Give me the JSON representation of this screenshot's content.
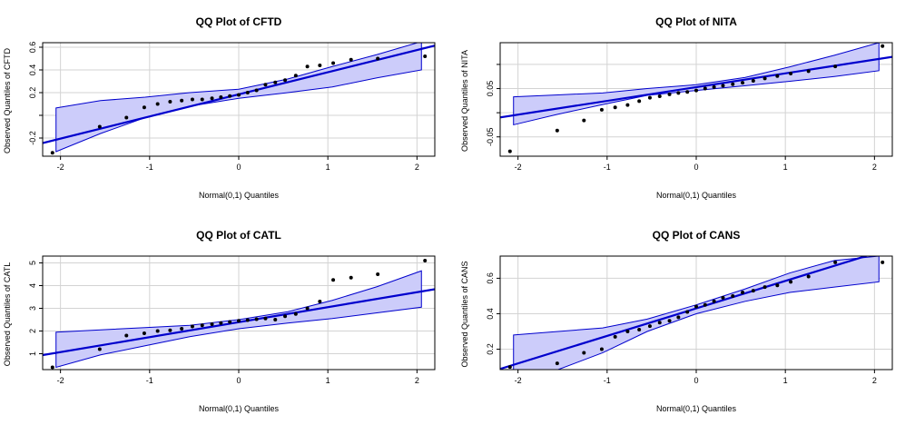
{
  "colors": {
    "band_fill": "#ccccfa",
    "band_stroke": "#0000cd",
    "line": "#0000cd",
    "point": "#000000",
    "grid": "#d3d3d3",
    "frame": "#000000"
  },
  "chart_data": [
    {
      "type": "scatter",
      "title": "QQ Plot of CFTD",
      "xlabel": "Normal(0,1) Quantiles",
      "ylabel": "Observed Quantiles of CFTD",
      "xlim": [
        -2.2,
        2.2
      ],
      "ylim": [
        -0.36,
        0.64
      ],
      "xticks": [
        -2,
        -1,
        0,
        1,
        2
      ],
      "xtick_labels": [
        "-2",
        "-1",
        "0",
        "1",
        "2"
      ],
      "yticks": [
        -0.2,
        0.0,
        0.2,
        0.4,
        0.6
      ],
      "ytick_labels": [
        "-0.2",
        "",
        "0.2",
        "0.4",
        "0.6"
      ],
      "grid": true,
      "line": {
        "intercept": 0.185,
        "slope": 0.195
      },
      "band": {
        "x": [
          -2.05,
          -1.55,
          -1.05,
          -0.55,
          0,
          0.55,
          1.05,
          1.55,
          2.05
        ],
        "upper": [
          0.065,
          0.13,
          0.16,
          0.2,
          0.23,
          0.32,
          0.43,
          0.535,
          0.65
        ],
        "lower": [
          -0.32,
          -0.16,
          -0.02,
          0.08,
          0.15,
          0.2,
          0.25,
          0.33,
          0.4
        ]
      },
      "x": [
        -2.09,
        -1.56,
        -1.26,
        -1.06,
        -0.91,
        -0.77,
        -0.64,
        -0.52,
        -0.41,
        -0.3,
        -0.2,
        -0.1,
        0.0,
        0.1,
        0.2,
        0.3,
        0.41,
        0.52,
        0.64,
        0.77,
        0.91,
        1.06,
        1.26,
        1.56,
        2.09
      ],
      "y": [
        -0.33,
        -0.1,
        -0.02,
        0.07,
        0.1,
        0.12,
        0.13,
        0.14,
        0.14,
        0.15,
        0.16,
        0.17,
        0.18,
        0.2,
        0.22,
        0.27,
        0.29,
        0.31,
        0.35,
        0.43,
        0.44,
        0.46,
        0.49,
        0.5,
        0.52
      ]
    },
    {
      "type": "scatter",
      "title": "QQ Plot of NITA",
      "xlabel": "Normal(0,1) Quantiles",
      "ylabel": "Observed Quantiles of NITA",
      "xlim": [
        -2.2,
        2.2
      ],
      "ylim": [
        -0.09,
        0.145
      ],
      "xticks": [
        -2,
        -1,
        0,
        1,
        2
      ],
      "xtick_labels": [
        "-2",
        "-1",
        "0",
        "1",
        "2"
      ],
      "yticks": [
        -0.05,
        0.0,
        0.05,
        0.1
      ],
      "ytick_labels": [
        "-0.05",
        "",
        "0.05",
        ""
      ],
      "grid": true,
      "line": {
        "intercept": 0.053,
        "slope": 0.0285
      },
      "band": {
        "x": [
          -2.05,
          -1.55,
          -1.05,
          -0.55,
          0,
          0.55,
          1.05,
          1.55,
          2.05
        ],
        "upper": [
          0.033,
          0.037,
          0.041,
          0.05,
          0.058,
          0.073,
          0.095,
          0.119,
          0.145
        ],
        "lower": [
          -0.025,
          -0.003,
          0.017,
          0.036,
          0.046,
          0.056,
          0.065,
          0.075,
          0.087
        ]
      },
      "x": [
        -2.09,
        -1.56,
        -1.26,
        -1.06,
        -0.91,
        -0.77,
        -0.64,
        -0.52,
        -0.41,
        -0.3,
        -0.2,
        -0.1,
        0.0,
        0.1,
        0.2,
        0.3,
        0.41,
        0.52,
        0.64,
        0.77,
        0.91,
        1.06,
        1.26,
        1.56,
        2.09
      ],
      "y": [
        -0.08,
        -0.037,
        -0.016,
        0.006,
        0.011,
        0.016,
        0.024,
        0.031,
        0.034,
        0.038,
        0.041,
        0.043,
        0.046,
        0.05,
        0.053,
        0.056,
        0.059,
        0.062,
        0.066,
        0.071,
        0.076,
        0.081,
        0.086,
        0.096,
        0.138
      ]
    },
    {
      "type": "scatter",
      "title": "QQ Plot of CATL",
      "xlabel": "Normal(0,1) Quantiles",
      "ylabel": "Observed Quantiles of CATL",
      "xlim": [
        -2.2,
        2.2
      ],
      "ylim": [
        0.3,
        5.3
      ],
      "xticks": [
        -2,
        -1,
        0,
        1,
        2
      ],
      "xtick_labels": [
        "-2",
        "-1",
        "0",
        "1",
        "2"
      ],
      "yticks": [
        1,
        2,
        3,
        4,
        5
      ],
      "ytick_labels": [
        "1",
        "2",
        "3",
        "4",
        "5"
      ],
      "grid": true,
      "line": {
        "intercept": 2.39,
        "slope": 0.66
      },
      "band": {
        "x": [
          -2.05,
          -1.55,
          -1.05,
          -0.55,
          0,
          0.55,
          1.05,
          1.55,
          2.05
        ],
        "upper": [
          1.95,
          2.05,
          2.15,
          2.25,
          2.5,
          2.85,
          3.35,
          3.95,
          4.65
        ],
        "lower": [
          0.4,
          0.95,
          1.35,
          1.75,
          2.1,
          2.35,
          2.55,
          2.8,
          3.05
        ]
      },
      "x": [
        -2.09,
        -1.56,
        -1.26,
        -1.06,
        -0.91,
        -0.77,
        -0.64,
        -0.52,
        -0.41,
        -0.3,
        -0.2,
        -0.1,
        0.0,
        0.1,
        0.2,
        0.3,
        0.41,
        0.52,
        0.64,
        0.77,
        0.91,
        1.06,
        1.26,
        1.56,
        2.09
      ],
      "y": [
        0.4,
        1.2,
        1.8,
        1.9,
        2.0,
        2.03,
        2.1,
        2.2,
        2.25,
        2.3,
        2.35,
        2.4,
        2.45,
        2.48,
        2.52,
        2.55,
        2.5,
        2.65,
        2.75,
        3.0,
        3.3,
        4.25,
        4.35,
        4.5,
        5.1
      ]
    },
    {
      "type": "scatter",
      "title": "QQ Plot of CANS",
      "xlabel": "Normal(0,1) Quantiles",
      "ylabel": "Observed Quantiles of CANS",
      "xlim": [
        -2.2,
        2.2
      ],
      "ylim": [
        0.085,
        0.725
      ],
      "xticks": [
        -2,
        -1,
        0,
        1,
        2
      ],
      "xtick_labels": [
        "-2",
        "-1",
        "0",
        "1",
        "2"
      ],
      "yticks": [
        0.2,
        0.4,
        0.6
      ],
      "ytick_labels": [
        "0.2",
        "0.4",
        "0.6"
      ],
      "grid": true,
      "line": {
        "intercept": 0.43,
        "slope": 0.155
      },
      "band": {
        "x": [
          -2.05,
          -1.55,
          -1.05,
          -0.55,
          0,
          0.55,
          1.05,
          1.55,
          2.05
        ],
        "upper": [
          0.28,
          0.3,
          0.32,
          0.37,
          0.45,
          0.54,
          0.63,
          0.7,
          0.725
        ],
        "lower": [
          0.085,
          0.085,
          0.18,
          0.3,
          0.4,
          0.47,
          0.52,
          0.55,
          0.58
        ]
      },
      "x": [
        -2.09,
        -1.56,
        -1.26,
        -1.06,
        -0.91,
        -0.77,
        -0.64,
        -0.52,
        -0.41,
        -0.3,
        -0.2,
        -0.1,
        0.0,
        0.1,
        0.2,
        0.3,
        0.41,
        0.52,
        0.64,
        0.77,
        0.91,
        1.06,
        1.26,
        1.56,
        2.09
      ],
      "y": [
        0.1,
        0.12,
        0.18,
        0.2,
        0.27,
        0.3,
        0.31,
        0.33,
        0.35,
        0.36,
        0.38,
        0.41,
        0.44,
        0.45,
        0.47,
        0.49,
        0.5,
        0.52,
        0.53,
        0.55,
        0.56,
        0.58,
        0.61,
        0.69,
        0.69
      ]
    }
  ]
}
